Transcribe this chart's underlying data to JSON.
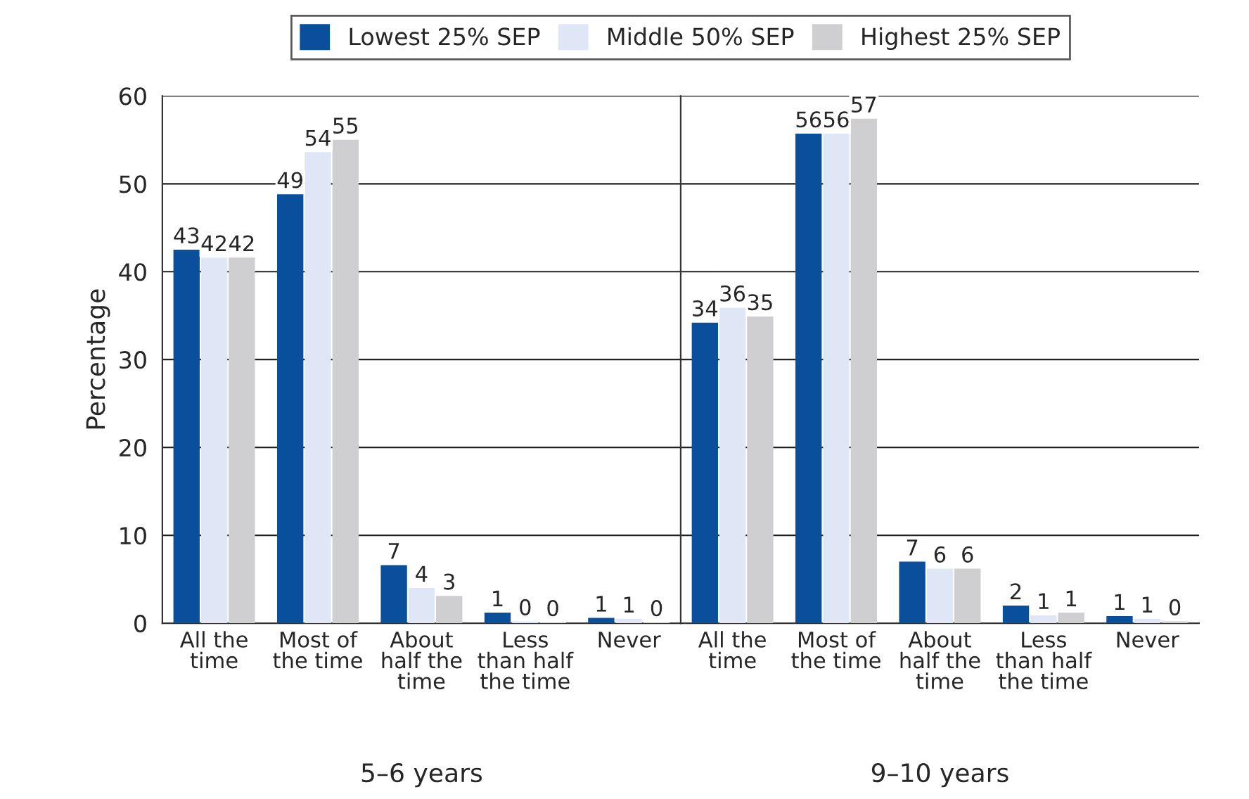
{
  "chart_data": [
    {
      "type": "bar",
      "ylabel": "Percentage",
      "xlabel": "5–6 years",
      "categories": [
        "All the\ntime",
        "Most of\nthe time",
        "About\nhalf the\ntime",
        "Less\nthan half\nthe time",
        "Never"
      ],
      "ylim": [
        0,
        60
      ],
      "yticks": [
        0,
        10,
        20,
        30,
        40,
        50,
        60
      ],
      "grid": "y",
      "legend": "top",
      "series": [
        {
          "name": "Lowest 25% SEP",
          "color": "#0a4f9c",
          "values": [
            42.5,
            48.8,
            6.6,
            1.2,
            0.6
          ],
          "value_labels": [
            "43",
            "49",
            "7",
            "1",
            "1"
          ]
        },
        {
          "name": "Middle 50% SEP",
          "color": "#dfe7f6",
          "values": [
            41.6,
            53.6,
            4.0,
            0.2,
            0.5
          ],
          "value_labels": [
            "42",
            "54",
            "4",
            "0",
            "1"
          ]
        },
        {
          "name": "Highest 25% SEP",
          "color": "#cfcfd1",
          "values": [
            41.6,
            55.0,
            3.1,
            0.1,
            0.1
          ],
          "value_labels": [
            "42",
            "55",
            "3",
            "0",
            "0"
          ]
        }
      ]
    },
    {
      "type": "bar",
      "xlabel": "9–10 years",
      "categories": [
        "All the\ntime",
        "Most of\nthe time",
        "About\nhalf the\ntime",
        "Less\nthan half\nthe time",
        "Never"
      ],
      "ylim": [
        0,
        60
      ],
      "grid": "y",
      "tick_labels": "x",
      "series": [
        {
          "color": "#0a4f9c",
          "values": [
            34.2,
            55.7,
            7.0,
            2.0,
            0.8
          ],
          "value_labels": [
            "34",
            "56",
            "7",
            "2",
            "1"
          ]
        },
        {
          "color": "#dfe7f6",
          "values": [
            35.9,
            55.7,
            6.2,
            0.9,
            0.5
          ],
          "value_labels": [
            "36",
            "56",
            "6",
            "1",
            "1"
          ]
        },
        {
          "color": "#cfcfd1",
          "values": [
            34.9,
            57.4,
            6.2,
            1.2,
            0.2
          ],
          "value_labels": [
            "35",
            "57",
            "6",
            "1",
            "0"
          ]
        }
      ]
    }
  ]
}
